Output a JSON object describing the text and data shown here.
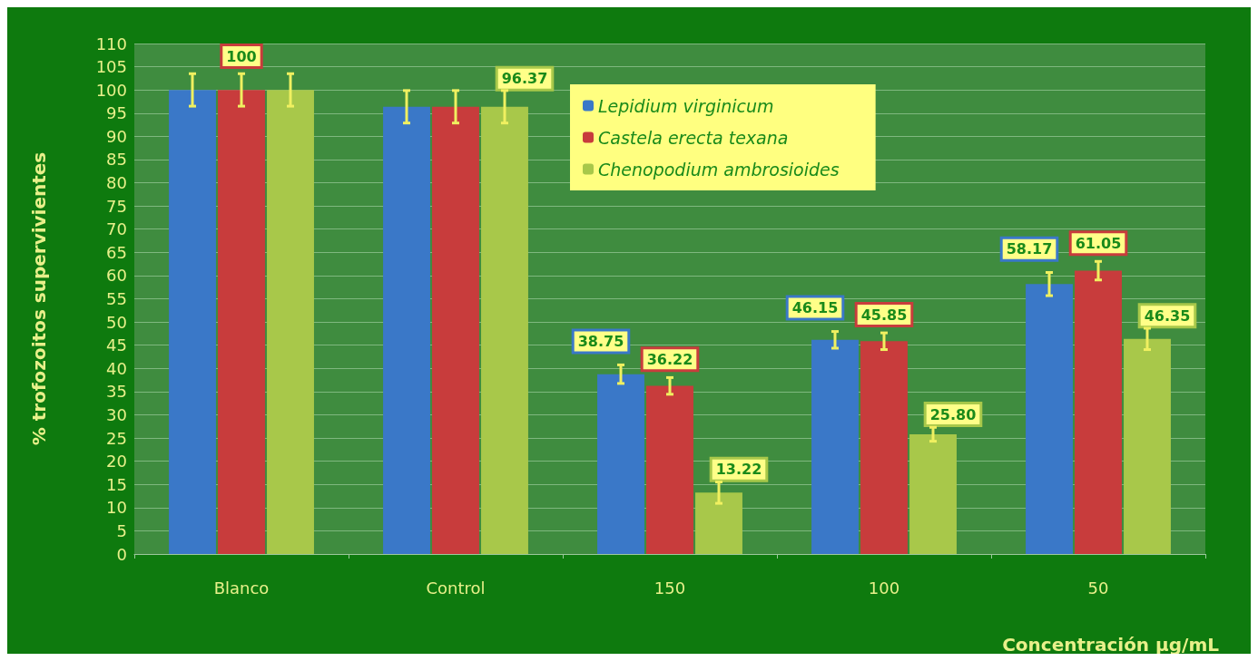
{
  "chart_data": {
    "type": "bar",
    "xlabel": "Concentración µg/mL",
    "ylabel": "% trofozoitos supervivientes",
    "categories": [
      "Blanco",
      "Control",
      "150",
      "100",
      "50"
    ],
    "series": [
      {
        "name": "Lepidium virginicum",
        "color": "#3a78c8",
        "values": [
          100,
          96.37,
          38.75,
          46.15,
          58.17
        ],
        "errors": [
          3.5,
          3.5,
          2,
          1.8,
          2.5
        ],
        "value_labels": [
          null,
          null,
          "38.75",
          "46.15",
          "58.17"
        ]
      },
      {
        "name": "Castela erecta texana",
        "color": "#c83c3c",
        "values": [
          100,
          96.37,
          36.22,
          45.85,
          61.05
        ],
        "errors": [
          3.5,
          3.5,
          1.8,
          1.8,
          2
        ],
        "value_labels": [
          "100",
          null,
          "36.22",
          "45.85",
          "61.05"
        ]
      },
      {
        "name": "Chenopodium ambrosioides",
        "color": "#a8c84a",
        "values": [
          100,
          96.37,
          13.22,
          25.8,
          46.35
        ],
        "errors": [
          3.5,
          3.5,
          2.3,
          1.5,
          2.3
        ],
        "value_labels": [
          null,
          "96.37",
          "13.22",
          "25.80",
          "46.35"
        ]
      }
    ],
    "ylim": [
      0,
      110
    ],
    "yticks": [
      0,
      5,
      10,
      15,
      20,
      25,
      30,
      35,
      40,
      45,
      50,
      55,
      60,
      65,
      70,
      75,
      80,
      85,
      90,
      95,
      100,
      105,
      110
    ],
    "grid": "y",
    "legend": "top"
  }
}
